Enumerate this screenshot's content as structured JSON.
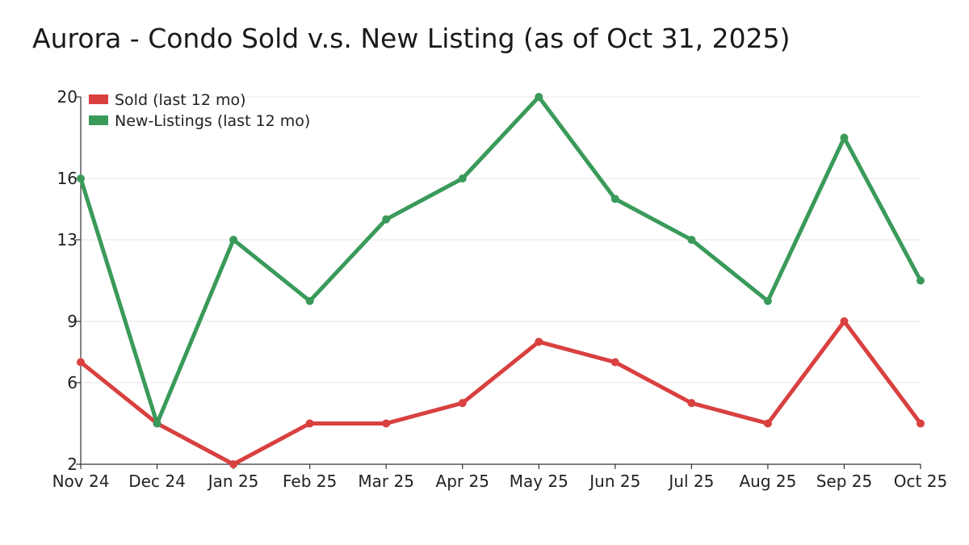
{
  "chart_data": {
    "type": "line",
    "title": "Aurora - Condo Sold v.s. New Listing (as of Oct 31, 2025)",
    "xlabel": "",
    "ylabel": "",
    "categories": [
      "Nov 24",
      "Dec 24",
      "Jan 25",
      "Feb 25",
      "Mar 25",
      "Apr 25",
      "May 25",
      "Jun 25",
      "Jul 25",
      "Aug 25",
      "Sep 25",
      "Oct 25"
    ],
    "y_ticks": [
      "20",
      "16",
      "13",
      "9",
      "6",
      "2"
    ],
    "ylim": [
      2,
      20
    ],
    "grid": true,
    "legend_position": "top-left",
    "series": [
      {
        "name": "Sold (last 12 mo)",
        "color": "#d94040",
        "values": [
          7,
          4,
          2,
          4,
          4,
          5,
          8,
          7,
          5,
          4,
          9,
          4
        ]
      },
      {
        "name": "New-Listings (last 12 mo)",
        "color": "#3a9a5a",
        "values": [
          16,
          4,
          13,
          10,
          14,
          16,
          20,
          15,
          13,
          10,
          18,
          11
        ]
      }
    ]
  }
}
